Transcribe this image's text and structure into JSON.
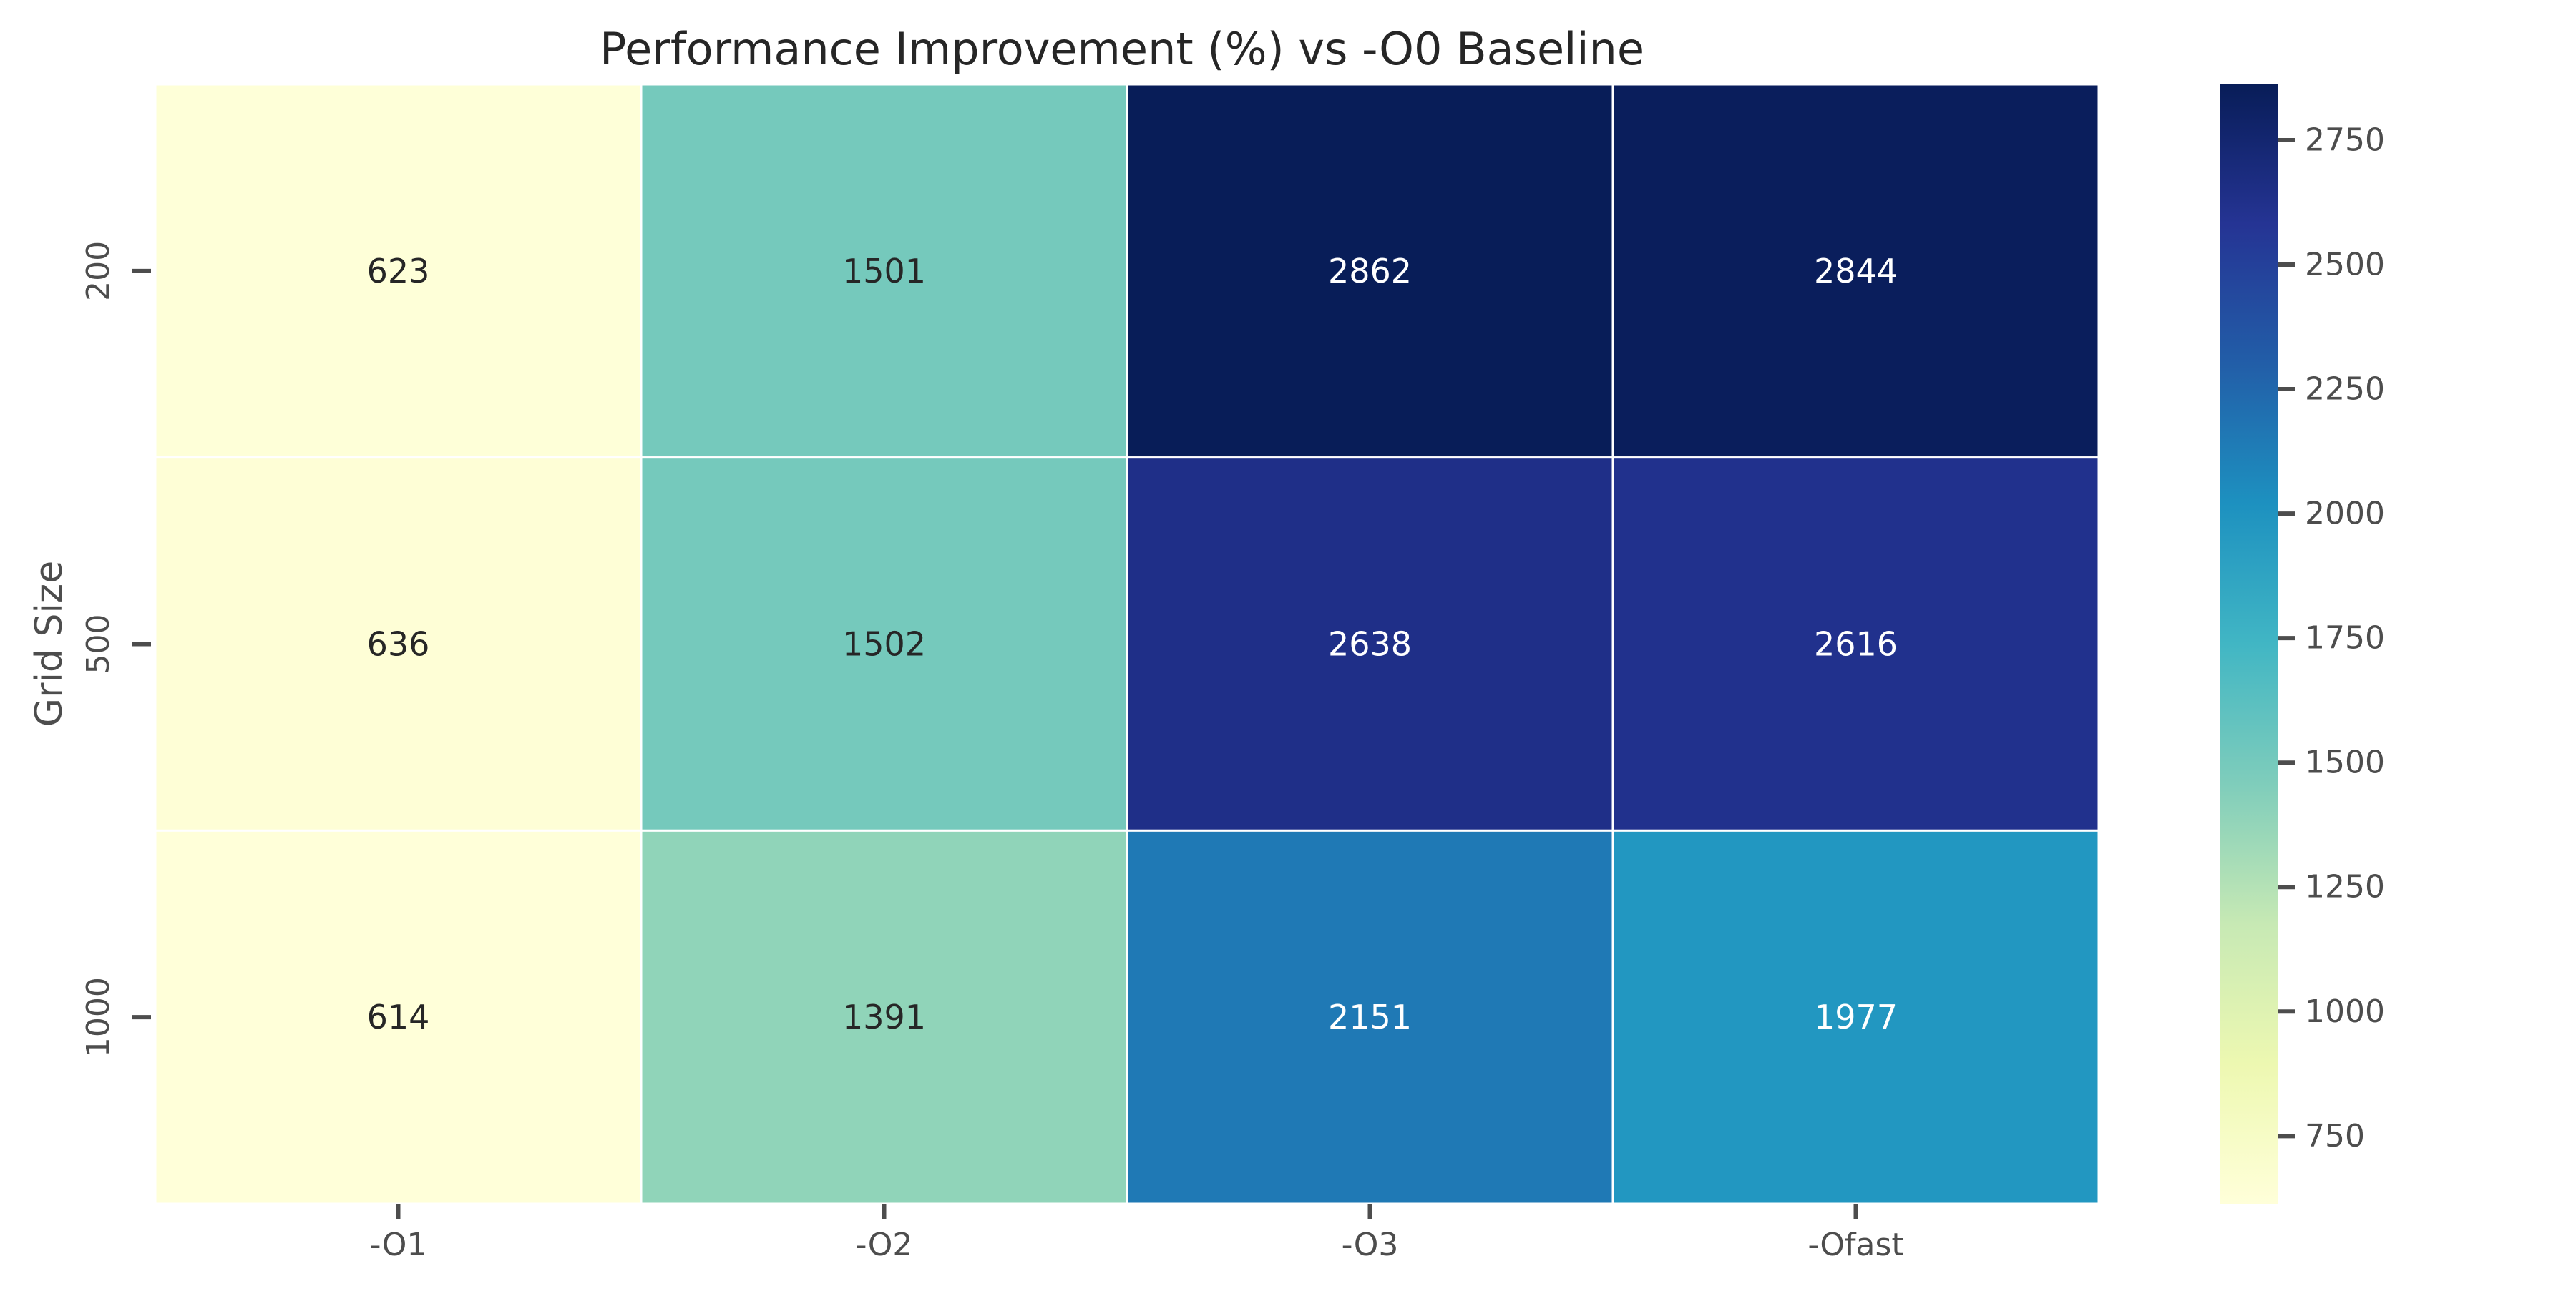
{
  "chart_data": {
    "type": "heatmap",
    "title": "Performance Improvement (%) vs -O0 Baseline",
    "xlabel": "",
    "ylabel": "Grid Size",
    "x_categories": [
      "-O1",
      "-O2",
      "-O3",
      "-Ofast"
    ],
    "y_categories": [
      "200",
      "500",
      "1000"
    ],
    "values": [
      [
        623,
        1501,
        2862,
        2844
      ],
      [
        636,
        1502,
        2638,
        2616
      ],
      [
        614,
        1391,
        2151,
        1977
      ]
    ],
    "colorbar": {
      "colormap": "YlGnBu",
      "range": [
        614,
        2862
      ],
      "ticks": [
        750,
        1000,
        1250,
        1500,
        1750,
        2000,
        2250,
        2500,
        2750
      ],
      "position": "right"
    },
    "grid": true,
    "cell_border_color": "#ffffff"
  }
}
